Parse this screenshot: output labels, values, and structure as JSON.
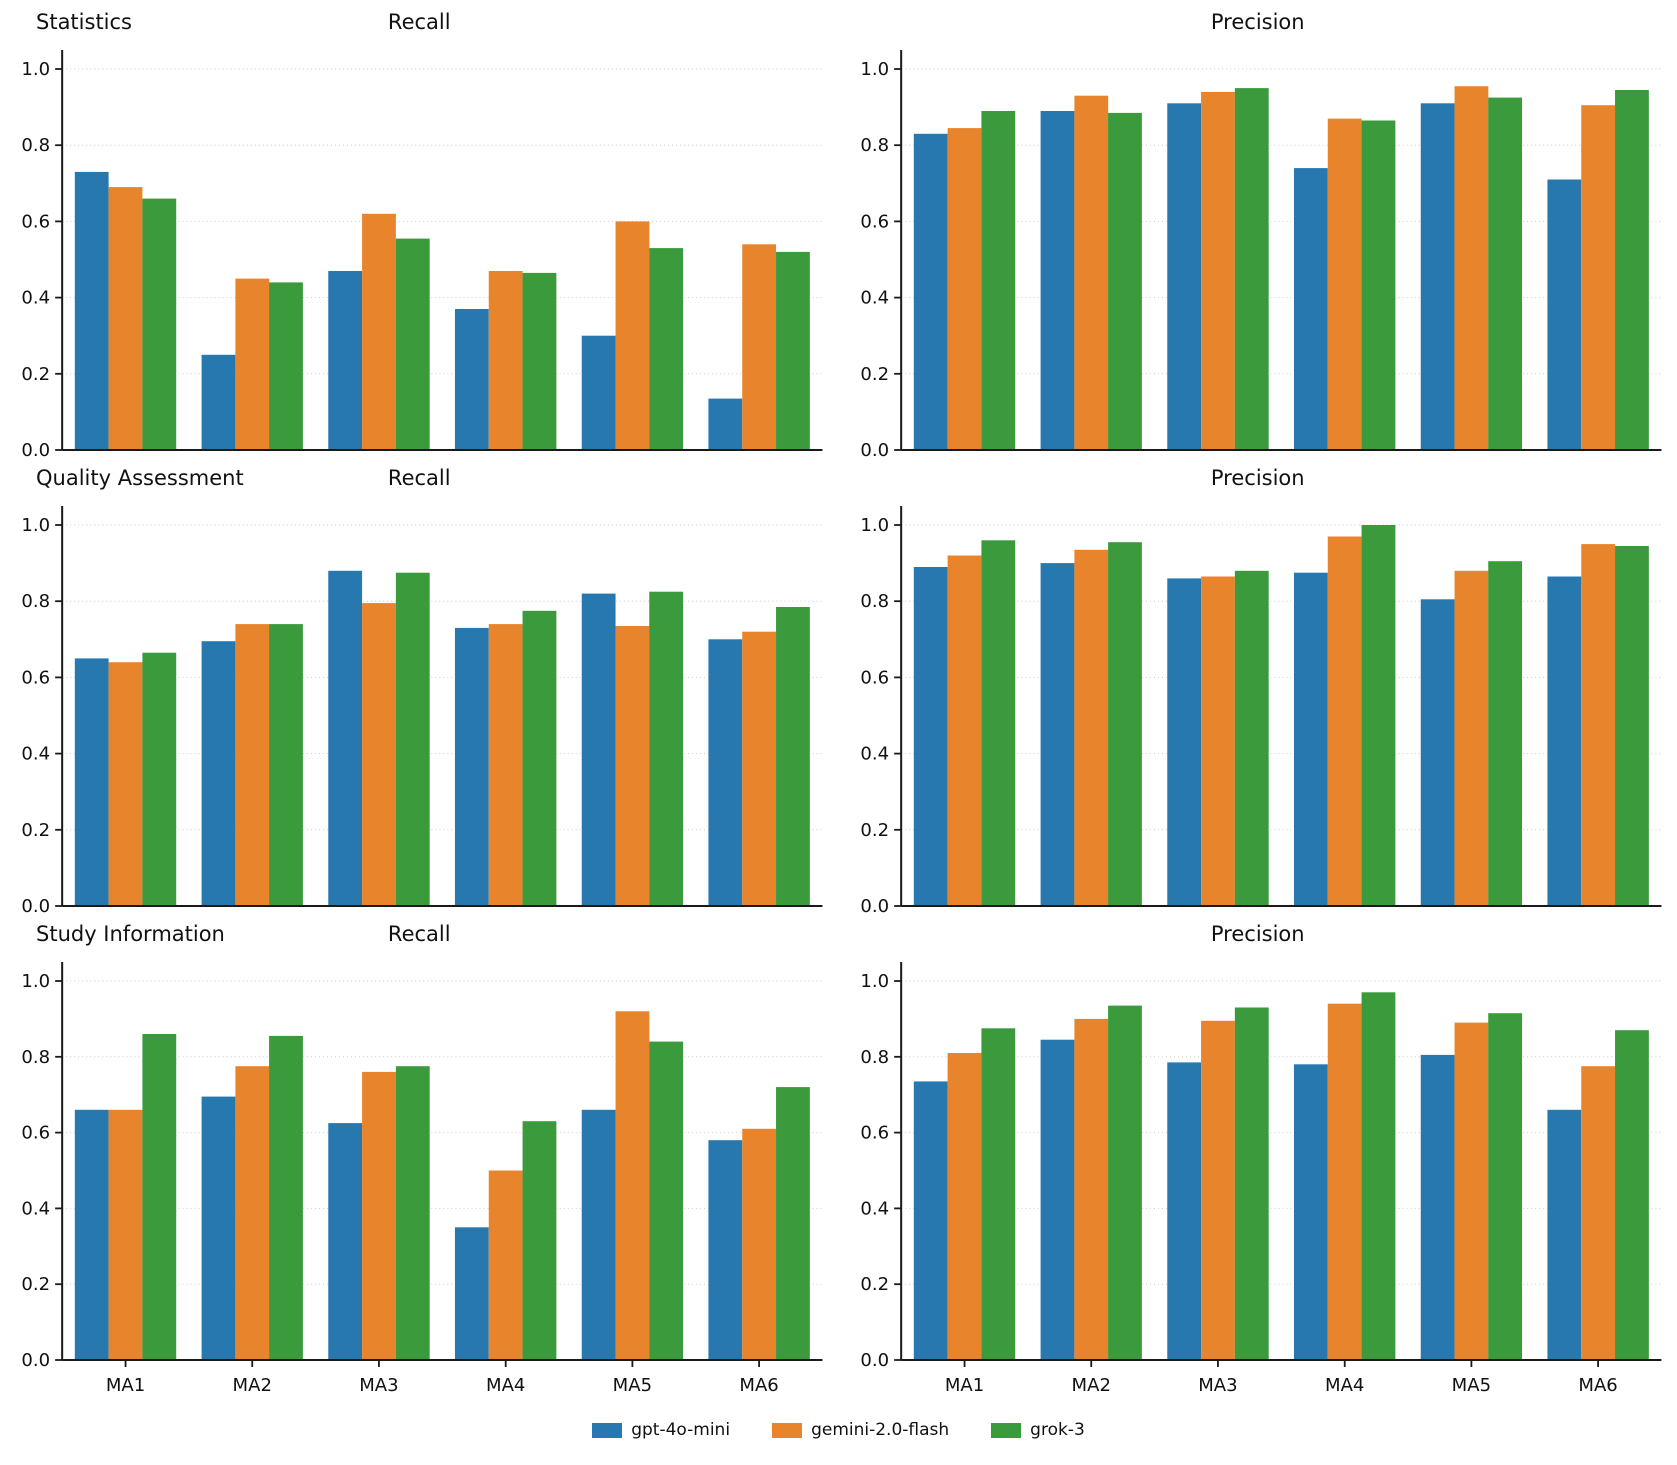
{
  "chart_data": {
    "type": "bar",
    "categories": [
      "MA1",
      "MA2",
      "MA3",
      "MA4",
      "MA5",
      "MA6"
    ],
    "series_names": [
      "gpt-4o-mini",
      "gemini-2.0-flash",
      "grok-3"
    ],
    "colors": [
      "#2878b0",
      "#e8852c",
      "#3a9a3c"
    ],
    "ylim": [
      0,
      1.05
    ],
    "yticks": [
      0.0,
      0.2,
      0.4,
      0.6,
      0.8,
      1.0
    ],
    "grid": "dotted-horizontal",
    "legend_position": "bottom-center",
    "rows": [
      {
        "row_label": "Statistics",
        "panels": [
          {
            "title": "Recall",
            "series": [
              {
                "name": "gpt-4o-mini",
                "values": [
                  0.73,
                  0.25,
                  0.47,
                  0.37,
                  0.3,
                  0.135
                ]
              },
              {
                "name": "gemini-2.0-flash",
                "values": [
                  0.69,
                  0.45,
                  0.62,
                  0.47,
                  0.6,
                  0.54
                ]
              },
              {
                "name": "grok-3",
                "values": [
                  0.66,
                  0.44,
                  0.555,
                  0.465,
                  0.53,
                  0.52
                ]
              }
            ]
          },
          {
            "title": "Precision",
            "series": [
              {
                "name": "gpt-4o-mini",
                "values": [
                  0.83,
                  0.89,
                  0.91,
                  0.74,
                  0.91,
                  0.71
                ]
              },
              {
                "name": "gemini-2.0-flash",
                "values": [
                  0.845,
                  0.93,
                  0.94,
                  0.87,
                  0.955,
                  0.905
                ]
              },
              {
                "name": "grok-3",
                "values": [
                  0.89,
                  0.885,
                  0.95,
                  0.865,
                  0.925,
                  0.945
                ]
              }
            ]
          }
        ]
      },
      {
        "row_label": "Quality Assessment",
        "panels": [
          {
            "title": "Recall",
            "series": [
              {
                "name": "gpt-4o-mini",
                "values": [
                  0.65,
                  0.695,
                  0.88,
                  0.73,
                  0.82,
                  0.7
                ]
              },
              {
                "name": "gemini-2.0-flash",
                "values": [
                  0.64,
                  0.74,
                  0.795,
                  0.74,
                  0.735,
                  0.72
                ]
              },
              {
                "name": "grok-3",
                "values": [
                  0.665,
                  0.74,
                  0.875,
                  0.775,
                  0.825,
                  0.785
                ]
              }
            ]
          },
          {
            "title": "Precision",
            "series": [
              {
                "name": "gpt-4o-mini",
                "values": [
                  0.89,
                  0.9,
                  0.86,
                  0.875,
                  0.805,
                  0.865
                ]
              },
              {
                "name": "gemini-2.0-flash",
                "values": [
                  0.92,
                  0.935,
                  0.865,
                  0.97,
                  0.88,
                  0.95
                ]
              },
              {
                "name": "grok-3",
                "values": [
                  0.96,
                  0.955,
                  0.88,
                  1.0,
                  0.905,
                  0.945
                ]
              }
            ]
          }
        ]
      },
      {
        "row_label": "Study Information",
        "panels": [
          {
            "title": "Recall",
            "series": [
              {
                "name": "gpt-4o-mini",
                "values": [
                  0.66,
                  0.695,
                  0.625,
                  0.35,
                  0.66,
                  0.58
                ]
              },
              {
                "name": "gemini-2.0-flash",
                "values": [
                  0.66,
                  0.775,
                  0.76,
                  0.5,
                  0.92,
                  0.61
                ]
              },
              {
                "name": "grok-3",
                "values": [
                  0.86,
                  0.855,
                  0.775,
                  0.63,
                  0.84,
                  0.72
                ]
              }
            ]
          },
          {
            "title": "Precision",
            "series": [
              {
                "name": "gpt-4o-mini",
                "values": [
                  0.735,
                  0.845,
                  0.785,
                  0.78,
                  0.805,
                  0.66
                ]
              },
              {
                "name": "gemini-2.0-flash",
                "values": [
                  0.81,
                  0.9,
                  0.895,
                  0.94,
                  0.89,
                  0.775
                ]
              },
              {
                "name": "grok-3",
                "values": [
                  0.875,
                  0.935,
                  0.93,
                  0.97,
                  0.915,
                  0.87
                ]
              }
            ]
          }
        ]
      }
    ]
  }
}
